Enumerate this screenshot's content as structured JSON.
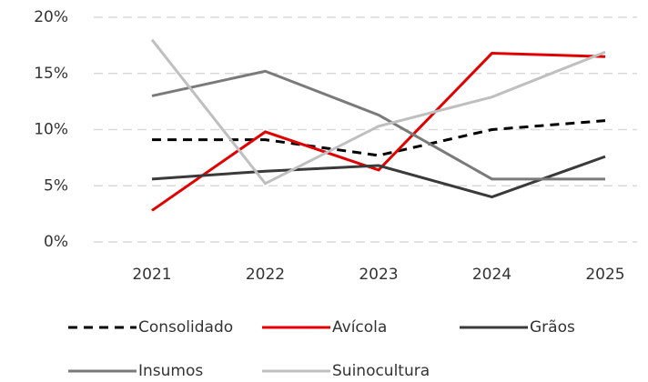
{
  "chart_data": {
    "type": "line",
    "categories": [
      "2021",
      "2022",
      "2023",
      "2024",
      "2025"
    ],
    "series": [
      {
        "name": "Consolidado",
        "color": "#000000",
        "style": "dashed",
        "values": [
          9.1,
          9.1,
          7.7,
          10.0,
          10.8
        ]
      },
      {
        "name": "Avícola",
        "color": "#e00000",
        "style": "solid",
        "values": [
          2.8,
          9.8,
          6.4,
          16.8,
          16.5
        ]
      },
      {
        "name": "Grãos",
        "color": "#3a3a3a",
        "style": "solid",
        "values": [
          5.6,
          6.3,
          6.8,
          4.0,
          7.6
        ]
      },
      {
        "name": "Insumos",
        "color": "#7a7a7a",
        "style": "solid",
        "values": [
          13.0,
          15.2,
          11.3,
          5.6,
          5.6
        ]
      },
      {
        "name": "Suinocultura",
        "color": "#bfbfbf",
        "style": "solid",
        "values": [
          18.0,
          5.2,
          10.3,
          12.9,
          16.9
        ]
      }
    ],
    "ylim": [
      0,
      20
    ],
    "yticks": [
      {
        "value": 0,
        "label": "0%"
      },
      {
        "value": 5,
        "label": "5%"
      },
      {
        "value": 10,
        "label": "10%"
      },
      {
        "value": 15,
        "label": "15%"
      },
      {
        "value": 20,
        "label": "20%"
      }
    ],
    "grid": true,
    "legend": "bottom"
  }
}
